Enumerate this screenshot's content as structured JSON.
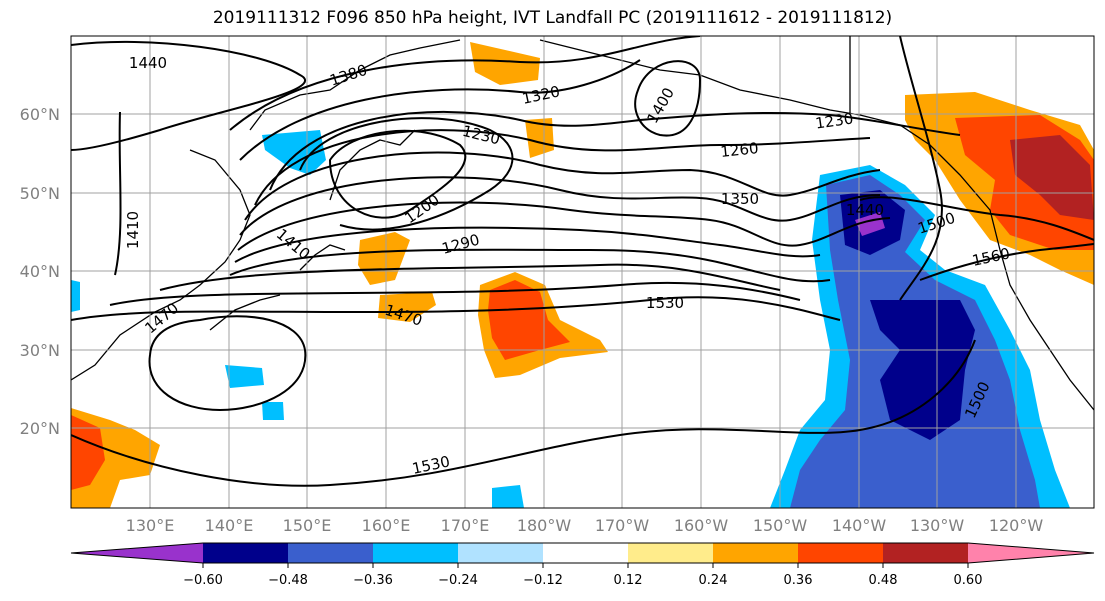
{
  "title": "2019111312 F096 850 hPa height, IVT Landfall PC (2019111612 - 2019111812)",
  "lat_labels": [
    "60°N",
    "50°N",
    "40°N",
    "30°N",
    "20°N"
  ],
  "lon_labels": [
    "130°E",
    "140°E",
    "150°E",
    "160°E",
    "170°E",
    "180°W",
    "170°W",
    "160°W",
    "150°W",
    "140°W",
    "130°W",
    "120°W"
  ],
  "contour_labels": [
    "1440",
    "1380",
    "1320",
    "1400",
    "1230",
    "1230",
    "1260",
    "1350",
    "1200",
    "1290",
    "1410",
    "1410",
    "1440",
    "1500",
    "1560",
    "1530",
    "1470",
    "1470",
    "1500",
    "1530"
  ],
  "colorbar": {
    "colors": [
      "#9932cc",
      "#00008b",
      "#3a5fcd",
      "#00bfff",
      "#b0e2ff",
      "#ffffff",
      "#ffffff",
      "#ffec8b",
      "#ffa500",
      "#ff4500",
      "#b22222",
      "#ff82ab"
    ],
    "labels": [
      "−0.60",
      "−0.48",
      "−0.36",
      "−0.24",
      "−0.12",
      "0.12",
      "0.24",
      "0.36",
      "0.48",
      "0.60"
    ]
  }
}
